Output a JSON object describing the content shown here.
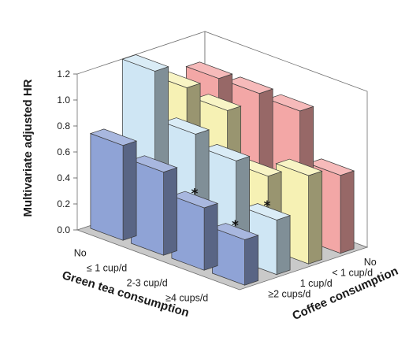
{
  "chart_data": {
    "type": "bar3d",
    "ylabel": "Multivariate adjusted HR",
    "xlabel": "Green tea consumption",
    "zlabel": "Coffee consumption",
    "ylim": [
      0,
      1.2
    ],
    "yticks": [
      "0.0",
      "0.2",
      "0.4",
      "0.6",
      "0.8",
      "1.0",
      "1.2"
    ],
    "green_tea_categories": [
      "No",
      "≤ 1 cup/d",
      "2-3 cup/d",
      "≥4 cups/d"
    ],
    "coffee_categories": [
      "No",
      "< 1 cup/d",
      "1 cup/d",
      "≥2 cups/d"
    ],
    "series": [
      {
        "name": "≥2 cups/d",
        "color": "#8fa3d6",
        "values": [
          0.73,
          0.64,
          0.48,
          0.35
        ],
        "significant": [
          false,
          false,
          true,
          true
        ]
      },
      {
        "name": "1 cup/d",
        "color": "#cfe6f4",
        "values": [
          1.22,
          0.85,
          0.76,
          0.42
        ],
        "significant": [
          false,
          false,
          false,
          true
        ]
      },
      {
        "name": "< 1 cup/d",
        "color": "#f6f1b4",
        "values": [
          1.01,
          0.95,
          0.56,
          0.68
        ],
        "significant": [
          false,
          false,
          false,
          false
        ]
      },
      {
        "name": "No",
        "color": "#f3a7a6",
        "values": [
          1.0,
          1.0,
          0.98,
          0.6
        ],
        "significant": [
          false,
          false,
          false,
          false
        ]
      }
    ],
    "significance_marker": "*",
    "grid": false
  }
}
